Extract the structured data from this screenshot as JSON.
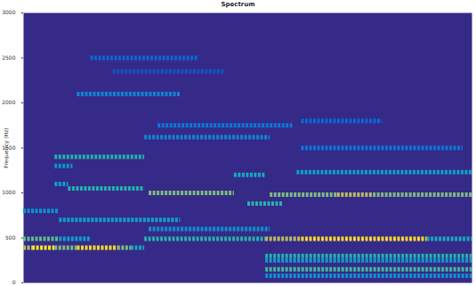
{
  "chart_data": {
    "type": "heatmap",
    "title": "Spectrum",
    "ylabel": "Frequency (Hz)",
    "xlim": [
      0,
      100
    ],
    "ylim": [
      0,
      3000
    ],
    "yticks": [
      0,
      500,
      1000,
      1500,
      2000,
      2500,
      3000
    ],
    "zlim": [
      0,
      1
    ],
    "grid": false,
    "tick_labels": "y",
    "cells": [
      {
        "start": 0,
        "end": 2,
        "frequency": 390,
        "level": 0.7
      },
      {
        "start": 2,
        "end": 7,
        "frequency": 390,
        "level": 0.95
      },
      {
        "start": 7,
        "end": 12,
        "frequency": 390,
        "level": 0.6
      },
      {
        "start": 12,
        "end": 21,
        "frequency": 390,
        "level": 0.9
      },
      {
        "start": 21,
        "end": 24,
        "frequency": 390,
        "level": 0.6
      },
      {
        "start": 24,
        "end": 27,
        "frequency": 390,
        "level": 0.4
      },
      {
        "start": 0,
        "end": 8,
        "frequency": 490,
        "level": 0.55
      },
      {
        "start": 8,
        "end": 15,
        "frequency": 490,
        "level": 0.35
      },
      {
        "start": 27,
        "end": 54,
        "frequency": 490,
        "level": 0.45
      },
      {
        "start": 54,
        "end": 62,
        "frequency": 490,
        "level": 0.7
      },
      {
        "start": 62,
        "end": 90,
        "frequency": 490,
        "level": 0.9
      },
      {
        "start": 90,
        "end": 100,
        "frequency": 490,
        "level": 0.4
      },
      {
        "start": 0,
        "end": 8,
        "frequency": 800,
        "level": 0.3
      },
      {
        "start": 8,
        "end": 35,
        "frequency": 700,
        "level": 0.35
      },
      {
        "start": 28,
        "end": 55,
        "frequency": 600,
        "level": 0.3
      },
      {
        "start": 10,
        "end": 27,
        "frequency": 1050,
        "level": 0.45
      },
      {
        "start": 7,
        "end": 10,
        "frequency": 1100,
        "level": 0.35
      },
      {
        "start": 7,
        "end": 11,
        "frequency": 1300,
        "level": 0.3
      },
      {
        "start": 28,
        "end": 47,
        "frequency": 1000,
        "level": 0.6
      },
      {
        "start": 47,
        "end": 54,
        "frequency": 1200,
        "level": 0.4
      },
      {
        "start": 50,
        "end": 58,
        "frequency": 880,
        "level": 0.45
      },
      {
        "start": 55,
        "end": 70,
        "frequency": 980,
        "level": 0.6
      },
      {
        "start": 70,
        "end": 78,
        "frequency": 980,
        "level": 0.7
      },
      {
        "start": 78,
        "end": 100,
        "frequency": 980,
        "level": 0.6
      },
      {
        "start": 61,
        "end": 100,
        "frequency": 1230,
        "level": 0.35
      },
      {
        "start": 7,
        "end": 27,
        "frequency": 1400,
        "level": 0.45
      },
      {
        "start": 62,
        "end": 98,
        "frequency": 1500,
        "level": 0.2
      },
      {
        "start": 27,
        "end": 55,
        "frequency": 1620,
        "level": 0.25
      },
      {
        "start": 30,
        "end": 60,
        "frequency": 1750,
        "level": 0.2
      },
      {
        "start": 62,
        "end": 80,
        "frequency": 1800,
        "level": 0.15
      },
      {
        "start": 12,
        "end": 35,
        "frequency": 2100,
        "level": 0.25
      },
      {
        "start": 20,
        "end": 45,
        "frequency": 2350,
        "level": 0.1
      },
      {
        "start": 15,
        "end": 39,
        "frequency": 2500,
        "level": 0.15
      },
      {
        "start": 54,
        "end": 100,
        "frequency": 300,
        "level": 0.45
      },
      {
        "start": 54,
        "end": 100,
        "frequency": 250,
        "level": 0.35
      },
      {
        "start": 54,
        "end": 100,
        "frequency": 150,
        "level": 0.5
      },
      {
        "start": 54,
        "end": 100,
        "frequency": 80,
        "level": 0.3
      }
    ]
  }
}
